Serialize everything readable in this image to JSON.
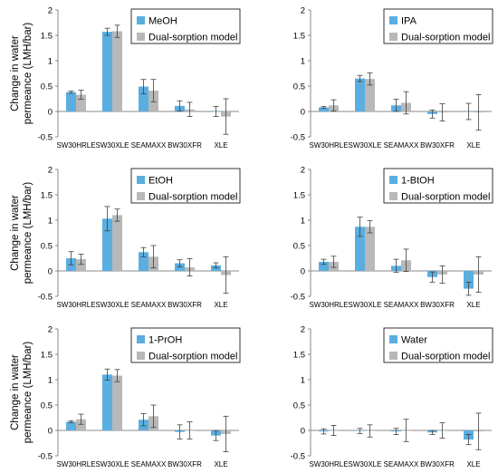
{
  "colors": {
    "measured": "#5AAEE0",
    "model": "#B8B8B8",
    "axis": "#888888",
    "errorbar": "#404040",
    "text": "#000000"
  },
  "chart_data": [
    {
      "type": "bar",
      "panel": "top-left",
      "categories": [
        "SW30HRLE",
        "SW30XLE",
        "SEAMAXX",
        "BW30XFR",
        "XLE"
      ],
      "ylabel": "Change in water permeance (LMH/bar)",
      "ylim": [
        -0.5,
        2
      ],
      "yticks": [
        "2",
        "1.5",
        "1",
        "0.5",
        "0",
        "-0.5"
      ],
      "legend_position": "top-right",
      "series": [
        {
          "name": "MeOH",
          "values": [
            0.38,
            1.57,
            0.49,
            0.11,
            0.0
          ],
          "errors": [
            0.02,
            0.07,
            0.14,
            0.1,
            0.1
          ]
        },
        {
          "name": "Dual-sorption model",
          "values": [
            0.33,
            1.58,
            0.41,
            0.04,
            -0.1
          ],
          "errors": [
            0.09,
            0.12,
            0.22,
            0.14,
            0.35
          ]
        }
      ]
    },
    {
      "type": "bar",
      "panel": "top-right",
      "categories": [
        "SW30HRLE",
        "SW30XLE",
        "SEAMAXX",
        "BW30XFR",
        "XLE"
      ],
      "ylabel": "",
      "ylim": [
        -0.5,
        2
      ],
      "yticks": [
        "2",
        "1.5",
        "1",
        "0.5",
        "0",
        "-0.5"
      ],
      "legend_position": "top-right",
      "series": [
        {
          "name": "IPA",
          "values": [
            0.08,
            0.65,
            0.12,
            -0.05,
            0.0
          ],
          "errors": [
            0.02,
            0.06,
            0.12,
            0.08,
            0.16
          ]
        },
        {
          "name": "Dual-sorption model",
          "values": [
            0.12,
            0.64,
            0.17,
            -0.02,
            -0.02
          ],
          "errors": [
            0.11,
            0.12,
            0.22,
            0.17,
            0.35
          ]
        }
      ]
    },
    {
      "type": "bar",
      "panel": "middle-left",
      "categories": [
        "SW30HRLE",
        "SW30XLE",
        "SEAMAXX",
        "BW30XFR",
        "XLE"
      ],
      "ylabel": "Change in water permeance (LMH/bar)",
      "ylim": [
        -0.5,
        2
      ],
      "yticks": [
        "2",
        "1.5",
        "1",
        "0.5",
        "0",
        "-0.5"
      ],
      "legend_position": "top-right",
      "series": [
        {
          "name": "EtOH",
          "values": [
            0.25,
            1.03,
            0.37,
            0.15,
            0.11
          ],
          "errors": [
            0.13,
            0.24,
            0.09,
            0.07,
            0.05
          ]
        },
        {
          "name": "Dual-sorption model",
          "values": [
            0.23,
            1.1,
            0.28,
            0.07,
            -0.08
          ],
          "errors": [
            0.1,
            0.12,
            0.22,
            0.17,
            0.36
          ]
        }
      ]
    },
    {
      "type": "bar",
      "panel": "middle-right",
      "categories": [
        "SW30HRLE",
        "SW30XLE",
        "SEAMAXX",
        "BW30XFR",
        "XLE"
      ],
      "ylabel": "",
      "ylim": [
        -0.5,
        2
      ],
      "yticks": [
        "2",
        "1.5",
        "1",
        "0.5",
        "0",
        "-0.5"
      ],
      "legend_position": "top-right",
      "series": [
        {
          "name": "1-BtOH",
          "values": [
            0.18,
            0.87,
            0.1,
            -0.12,
            -0.35
          ],
          "errors": [
            0.05,
            0.19,
            0.13,
            0.1,
            0.13
          ]
        },
        {
          "name": "Dual-sorption model",
          "values": [
            0.18,
            0.87,
            0.21,
            -0.07,
            -0.07
          ],
          "errors": [
            0.11,
            0.12,
            0.22,
            0.17,
            0.35
          ]
        }
      ]
    },
    {
      "type": "bar",
      "panel": "bottom-left",
      "categories": [
        "SW30HRLE",
        "SW30XLE",
        "SEAMAXX",
        "BW30XFR",
        "XLE"
      ],
      "ylabel": "Change in water permeance (LMH/bar)",
      "ylim": [
        -0.5,
        2
      ],
      "yticks": [
        "2",
        "1.5",
        "1",
        "0.5",
        "0",
        "-0.5"
      ],
      "legend_position": "top-right",
      "series": [
        {
          "name": "1-PrOH",
          "values": [
            0.17,
            1.1,
            0.21,
            -0.03,
            -0.1
          ],
          "errors": [
            0.02,
            0.11,
            0.12,
            0.14,
            0.1
          ]
        },
        {
          "name": "Dual-sorption model",
          "values": [
            0.22,
            1.08,
            0.28,
            0.0,
            -0.07
          ],
          "errors": [
            0.1,
            0.12,
            0.22,
            0.17,
            0.35
          ]
        }
      ]
    },
    {
      "type": "bar",
      "panel": "bottom-right",
      "categories": [
        "SW30HRLE",
        "SW30XLE",
        "SEAMAXX",
        "BW30XFR",
        "XLE"
      ],
      "ylabel": "",
      "ylim": [
        -0.5,
        2
      ],
      "yticks": [
        "2",
        "1.5",
        "1",
        "0.5",
        "0",
        "-0.5"
      ],
      "legend_position": "top-right",
      "series": [
        {
          "name": "Water",
          "values": [
            -0.02,
            -0.01,
            -0.02,
            -0.04,
            -0.18
          ],
          "errors": [
            0.05,
            0.05,
            0.06,
            0.04,
            0.1
          ]
        },
        {
          "name": "Dual-sorption model",
          "values": [
            0.0,
            -0.01,
            0.0,
            0.0,
            -0.02
          ],
          "errors": [
            0.1,
            0.12,
            0.22,
            0.15,
            0.36
          ]
        }
      ]
    }
  ]
}
